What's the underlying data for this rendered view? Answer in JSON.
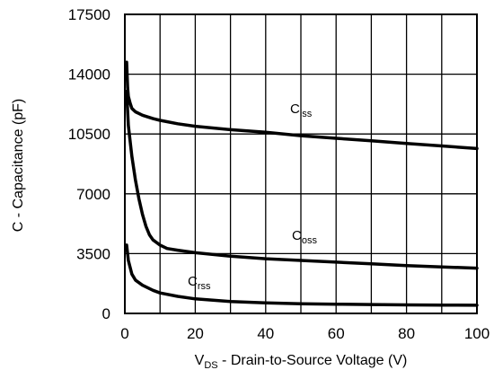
{
  "chart_data": {
    "type": "line",
    "title": "",
    "xlabel": {
      "main": "V",
      "sub": "DS",
      "rest": " - Drain-to-Source Voltage (V)"
    },
    "ylabel": "C - Capacitance (pF)",
    "xlim": [
      0,
      100
    ],
    "ylim": [
      0,
      17500
    ],
    "xticks": [
      0,
      20,
      40,
      60,
      80,
      100
    ],
    "yticks": [
      0,
      3500,
      7000,
      10500,
      14000,
      17500
    ],
    "xgrid_step": 10,
    "grid": true,
    "series": [
      {
        "name": "Ciss",
        "label_main": "C",
        "label_sub": "iss",
        "x": [
          0.5,
          0.8,
          1,
          1.5,
          2,
          3,
          5,
          8,
          10,
          15,
          20,
          30,
          40,
          50,
          60,
          70,
          80,
          90,
          100
        ],
        "y": [
          14700,
          13200,
          12700,
          12300,
          12000,
          11800,
          11600,
          11400,
          11300,
          11100,
          10950,
          10750,
          10600,
          10400,
          10250,
          10100,
          9950,
          9800,
          9650
        ]
      },
      {
        "name": "Coss",
        "label_main": "C",
        "label_sub": "oss",
        "x": [
          0.5,
          1,
          2,
          3,
          4,
          5,
          6,
          7,
          8,
          10,
          12,
          15,
          20,
          30,
          40,
          50,
          60,
          70,
          80,
          90,
          100
        ],
        "y": [
          13000,
          11000,
          9200,
          7800,
          6700,
          5800,
          5100,
          4600,
          4300,
          4000,
          3800,
          3700,
          3550,
          3350,
          3200,
          3100,
          3000,
          2900,
          2800,
          2720,
          2650
        ]
      },
      {
        "name": "Crss",
        "label_main": "C",
        "label_sub": "rss",
        "x": [
          0.5,
          1,
          2,
          3,
          5,
          8,
          10,
          15,
          20,
          30,
          40,
          50,
          60,
          70,
          80,
          90,
          100
        ],
        "y": [
          4000,
          3100,
          2300,
          1950,
          1650,
          1350,
          1200,
          1000,
          850,
          700,
          620,
          570,
          540,
          520,
          500,
          490,
          480
        ]
      }
    ]
  }
}
